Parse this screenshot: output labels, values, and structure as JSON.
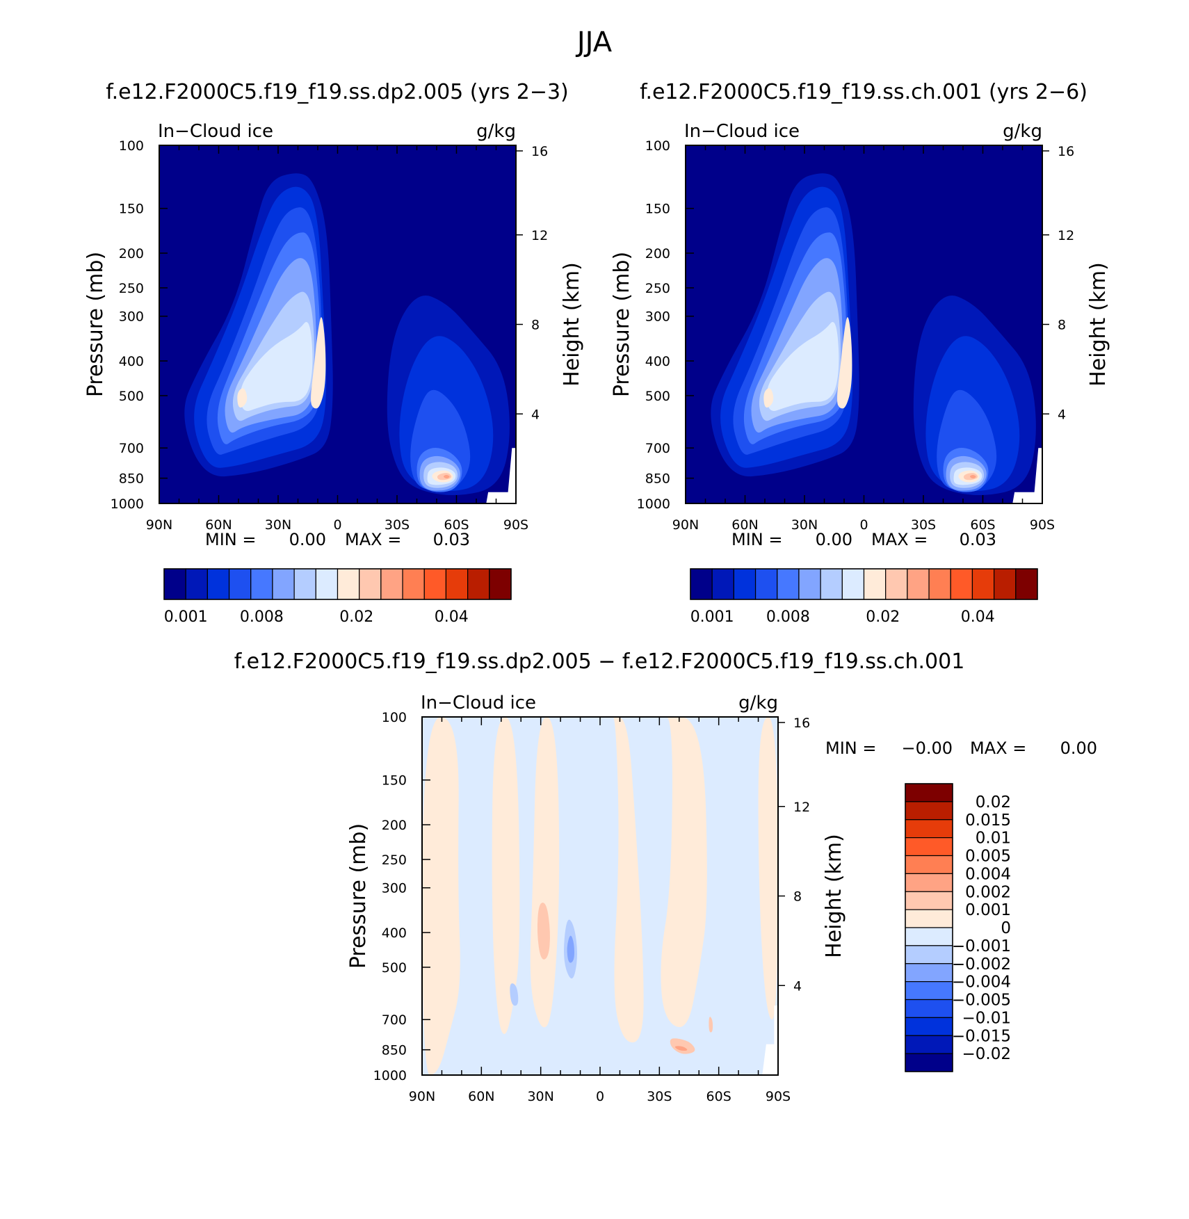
{
  "figure_title": "JJA",
  "colors": {
    "abs_palette": [
      "#00008a",
      "#0018b8",
      "#0032dc",
      "#1e50f0",
      "#4678ff",
      "#82a5ff",
      "#b4cdff",
      "#dcebff",
      "#ffebd9",
      "#ffc8b0",
      "#ffa384",
      "#ff7f53",
      "#ff5a28",
      "#e63c0a",
      "#b91e00",
      "#7d0000"
    ],
    "diff_palette": [
      "#00008a",
      "#0018b8",
      "#0032dc",
      "#1e50f0",
      "#4678ff",
      "#82a5ff",
      "#b4cdff",
      "#dcebff",
      "#ffebd9",
      "#ffc8b0",
      "#ffa384",
      "#ff7f53",
      "#ff5a28",
      "#e63c0a",
      "#b91e00",
      "#7d0000"
    ]
  },
  "chart_data": [
    {
      "type": "heatmap",
      "title": "f.e12.F2000C5.f19_f19.ss.dp2.005 (yrs 2−3)",
      "left_label": "In−Cloud ice",
      "right_label": "g/kg",
      "ylabel": "Pressure (mb)",
      "y2label": "Height (km)",
      "xticks": [
        "90N",
        "60N",
        "30N",
        "0",
        "30S",
        "60S",
        "90S"
      ],
      "yticks": [
        "100",
        "150",
        "200",
        "250",
        "300",
        "400",
        "500",
        "700",
        "850",
        "1000"
      ],
      "y2ticks": [
        "16",
        "12",
        "8",
        "4"
      ],
      "stats": {
        "min_label": "MIN =",
        "min": "0.00",
        "max_label": "MAX =",
        "max": "0.03"
      },
      "colorbar_labels": [
        "0.001",
        "0.008",
        "0.02",
        "0.04"
      ],
      "x_range": [
        "90N",
        "90S"
      ],
      "y_range": [
        1000,
        100
      ],
      "y_scale": "log",
      "features": [
        {
          "region": "NH/tropical upper-tropospheric maximum",
          "lat": "10N",
          "pressure_mb": 500,
          "value": 0.02
        },
        {
          "region": "Southern Hemisphere low-level maximum",
          "lat": "55S",
          "pressure_mb": 850,
          "value": 0.03
        }
      ]
    },
    {
      "type": "heatmap",
      "title": "f.e12.F2000C5.f19_f19.ss.ch.001 (yrs 2−6)",
      "left_label": "In−Cloud ice",
      "right_label": "g/kg",
      "ylabel": "Pressure (mb)",
      "y2label": "Height (km)",
      "xticks": [
        "90N",
        "60N",
        "30N",
        "0",
        "30S",
        "60S",
        "90S"
      ],
      "yticks": [
        "100",
        "150",
        "200",
        "250",
        "300",
        "400",
        "500",
        "700",
        "850",
        "1000"
      ],
      "y2ticks": [
        "16",
        "12",
        "8",
        "4"
      ],
      "stats": {
        "min_label": "MIN =",
        "min": "0.00",
        "max_label": "MAX =",
        "max": "0.03"
      },
      "colorbar_labels": [
        "0.001",
        "0.008",
        "0.02",
        "0.04"
      ],
      "x_range": [
        "90N",
        "90S"
      ],
      "y_range": [
        1000,
        100
      ],
      "y_scale": "log",
      "features": [
        {
          "region": "NH/tropical upper-tropospheric maximum",
          "lat": "10N",
          "pressure_mb": 500,
          "value": 0.02
        },
        {
          "region": "Southern Hemisphere low-level maximum",
          "lat": "55S",
          "pressure_mb": 850,
          "value": 0.03
        }
      ]
    },
    {
      "type": "heatmap",
      "title": "f.e12.F2000C5.f19_f19.ss.dp2.005 − f.e12.F2000C5.f19_f19.ss.ch.001",
      "left_label": "In−Cloud ice",
      "right_label": "g/kg",
      "ylabel": "Pressure (mb)",
      "y2label": "Height (km)",
      "xticks": [
        "90N",
        "60N",
        "30N",
        "0",
        "30S",
        "60S",
        "90S"
      ],
      "yticks": [
        "100",
        "150",
        "200",
        "250",
        "300",
        "400",
        "500",
        "700",
        "850",
        "1000"
      ],
      "y2ticks": [
        "16",
        "12",
        "8",
        "4"
      ],
      "stats": {
        "min_label": "MIN =",
        "min": "−0.00",
        "max_label": "MAX =",
        "max": "0.00"
      },
      "colorbar_labels": [
        "0.02",
        "0.015",
        "0.01",
        "0.005",
        "0.004",
        "0.002",
        "0.001",
        "0",
        "−0.001",
        "−0.002",
        "−0.004",
        "−0.005",
        "−0.01",
        "−0.015",
        "−0.02"
      ],
      "x_range": [
        "90N",
        "90S"
      ],
      "y_range": [
        1000,
        100
      ],
      "y_scale": "log",
      "features": [
        {
          "region": "positive anomaly",
          "lat": "40S",
          "pressure_mb": 850,
          "value": 0.004
        },
        {
          "region": "positive anomaly",
          "lat": "28N",
          "pressure_mb": 380,
          "value": 0.002
        },
        {
          "region": "negative anomaly",
          "lat": "15N",
          "pressure_mb": 450,
          "value": -0.004
        }
      ]
    }
  ]
}
